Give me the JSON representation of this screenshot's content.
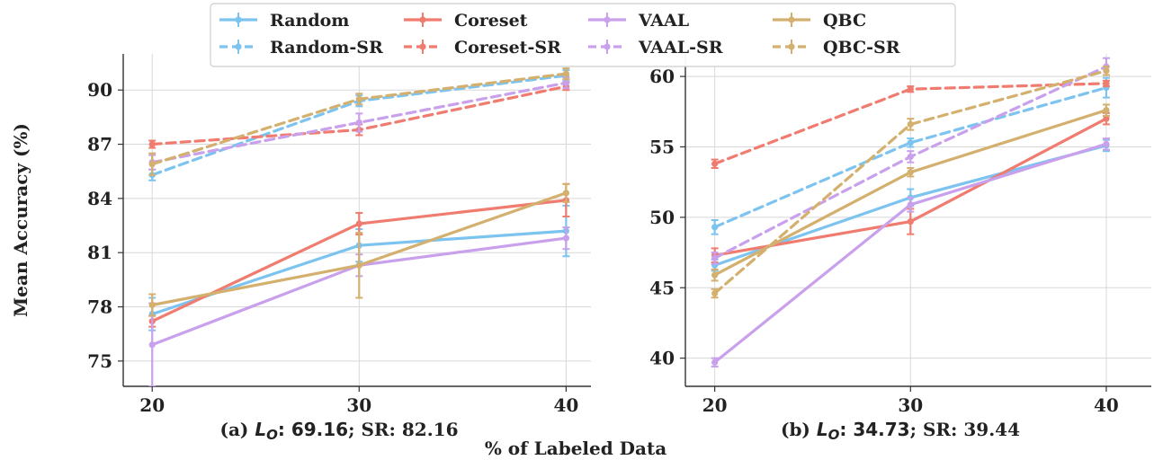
{
  "figure": {
    "ylabel": "Mean Accuracy (%)",
    "xlabel": "% of Labeled Data"
  },
  "legend": [
    {
      "name": "Random",
      "color": "#7cc4ef",
      "dashed": false
    },
    {
      "name": "Random-SR",
      "color": "#7cc4ef",
      "dashed": true
    },
    {
      "name": "Coreset",
      "color": "#f07b6f",
      "dashed": false
    },
    {
      "name": "Coreset-SR",
      "color": "#f07b6f",
      "dashed": true
    },
    {
      "name": "VAAL",
      "color": "#c9a0ec",
      "dashed": false
    },
    {
      "name": "VAAL-SR",
      "color": "#c9a0ec",
      "dashed": true
    },
    {
      "name": "QBC",
      "color": "#d4b06f",
      "dashed": false
    },
    {
      "name": "QBC-SR",
      "color": "#d4b06f",
      "dashed": true
    }
  ],
  "chart_data": [
    {
      "type": "line",
      "subtitle_prefix": "(a) ",
      "subtitle_lo": "L",
      "subtitle_lo_sub": "O",
      "subtitle_value": ": 69.16",
      "subtitle_rest": "; SR: 82.16",
      "x": [
        20,
        30,
        40
      ],
      "xlim": [
        18.6,
        41.2
      ],
      "ylim": [
        73.6,
        92
      ],
      "yticks": [
        75,
        78,
        81,
        84,
        87,
        90
      ],
      "grid": true,
      "series": [
        {
          "name": "Random",
          "values": [
            77.6,
            81.4,
            82.2
          ],
          "err": [
            0.9,
            0.9,
            1.4
          ]
        },
        {
          "name": "Random-SR",
          "values": [
            85.3,
            89.4,
            90.8
          ],
          "err": [
            0.3,
            0.3,
            0.3
          ]
        },
        {
          "name": "Coreset",
          "values": [
            77.2,
            82.6,
            83.9
          ],
          "err": [
            0.3,
            0.6,
            0.9
          ]
        },
        {
          "name": "Coreset-SR",
          "values": [
            87.0,
            87.8,
            90.2
          ],
          "err": [
            0.2,
            0.3,
            0.2
          ]
        },
        {
          "name": "VAAL",
          "values": [
            75.9,
            80.3,
            81.8
          ],
          "err": [
            2.3,
            0.6,
            0.6
          ]
        },
        {
          "name": "VAAL-SR",
          "values": [
            86.0,
            88.2,
            90.4
          ],
          "err": [
            0.4,
            0.5,
            0.3
          ]
        },
        {
          "name": "QBC",
          "values": [
            78.1,
            80.3,
            84.3
          ],
          "err": [
            0.6,
            1.8,
            0.5
          ]
        },
        {
          "name": "QBC-SR",
          "values": [
            85.9,
            89.5,
            90.9
          ],
          "err": [
            0.6,
            0.3,
            0.3
          ]
        }
      ]
    },
    {
      "type": "line",
      "subtitle_prefix": "(b) ",
      "subtitle_lo": "L",
      "subtitle_lo_sub": "O",
      "subtitle_value": ": 34.73",
      "subtitle_rest": "; SR: 39.44",
      "x": [
        20,
        30,
        40
      ],
      "xlim": [
        18.5,
        42.3
      ],
      "ylim": [
        38,
        61.6
      ],
      "yticks": [
        40,
        45,
        50,
        55,
        60
      ],
      "grid": true,
      "series": [
        {
          "name": "Random",
          "values": [
            46.6,
            51.4,
            55.1
          ],
          "err": [
            0.4,
            0.6,
            0.4
          ]
        },
        {
          "name": "Random-SR",
          "values": [
            49.3,
            55.3,
            59.2
          ],
          "err": [
            0.5,
            0.3,
            0.7
          ]
        },
        {
          "name": "Coreset",
          "values": [
            47.3,
            49.7,
            57.0
          ],
          "err": [
            0.5,
            0.9,
            0.4
          ]
        },
        {
          "name": "Coreset-SR",
          "values": [
            53.8,
            59.1,
            59.5
          ],
          "err": [
            0.3,
            0.2,
            0.2
          ]
        },
        {
          "name": "VAAL",
          "values": [
            39.7,
            50.9,
            55.2
          ],
          "err": [
            0.3,
            0.5,
            0.4
          ]
        },
        {
          "name": "VAAL-SR",
          "values": [
            47.1,
            54.3,
            60.7
          ],
          "err": [
            0.4,
            0.4,
            0.6
          ]
        },
        {
          "name": "QBC",
          "values": [
            45.9,
            53.2,
            57.6
          ],
          "err": [
            0.4,
            0.3,
            0.4
          ]
        },
        {
          "name": "QBC-SR",
          "values": [
            44.6,
            56.6,
            60.4
          ],
          "err": [
            0.3,
            0.4,
            0.3
          ]
        }
      ]
    }
  ]
}
